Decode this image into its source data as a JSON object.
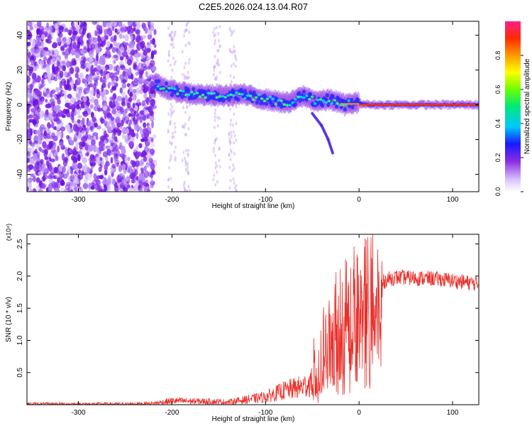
{
  "title": "C2E5.2026.024.13.04.R07",
  "chart_data": [
    {
      "type": "heatmap",
      "xlabel": "Height of straight line (km)",
      "ylabel": "Frequency (Hz)",
      "xlim": [
        -355,
        128
      ],
      "ylim": [
        -50,
        48
      ],
      "xticks": [
        -300,
        -200,
        -100,
        0,
        100
      ],
      "yticks": [
        -40,
        -20,
        0,
        20,
        40
      ],
      "colorbar": {
        "label": "Normalized spectral amplitude",
        "range": [
          0,
          1
        ],
        "ticks": [
          0.0,
          0.2,
          0.4,
          0.6,
          0.8
        ]
      },
      "features": {
        "noise_region_x": [
          -355,
          -218
        ],
        "noise_streaks_x": [
          -200,
          -185,
          -152,
          -135
        ],
        "signal_ridge": {
          "x": [
            -218,
            -200,
            -175,
            -150,
            -125,
            -100,
            -75,
            -60,
            -45,
            -30,
            -15,
            -5,
            0,
            10,
            50,
            128
          ],
          "freq": [
            12,
            8,
            6,
            5,
            6,
            3,
            1,
            5,
            2,
            3,
            0,
            1,
            1,
            0,
            0,
            0
          ]
        },
        "descending_branch": {
          "x": [
            -50,
            -40,
            -33,
            -28
          ],
          "freq": [
            -5,
            -12,
            -20,
            -28
          ]
        }
      }
    },
    {
      "type": "line",
      "xlabel": "Height of straight line (km)",
      "ylabel": "SNR (10 * v/v)",
      "y_multiplier": "(x10⁴)",
      "xlim": [
        -355,
        128
      ],
      "ylim": [
        0,
        2.65
      ],
      "xticks": [
        -300,
        -200,
        -100,
        0,
        100
      ],
      "yticks": [
        0.5,
        1.0,
        1.5,
        2.0,
        2.5
      ],
      "color": "#e8312c",
      "series": [
        {
          "x": [
            -355,
            -250,
            -220,
            -200,
            -160,
            -140,
            -120,
            -100,
            -80,
            -60,
            -50,
            -40,
            -30,
            -20,
            -10,
            0,
            10,
            20,
            30,
            40,
            60,
            80,
            100,
            128
          ],
          "y": [
            0.01,
            0.01,
            0.02,
            0.06,
            0.05,
            0.04,
            0.08,
            0.12,
            0.22,
            0.28,
            0.35,
            0.7,
            1.0,
            1.3,
            1.45,
            1.6,
            1.75,
            1.85,
            1.95,
            1.98,
            1.97,
            1.96,
            1.93,
            1.88
          ]
        }
      ]
    }
  ]
}
